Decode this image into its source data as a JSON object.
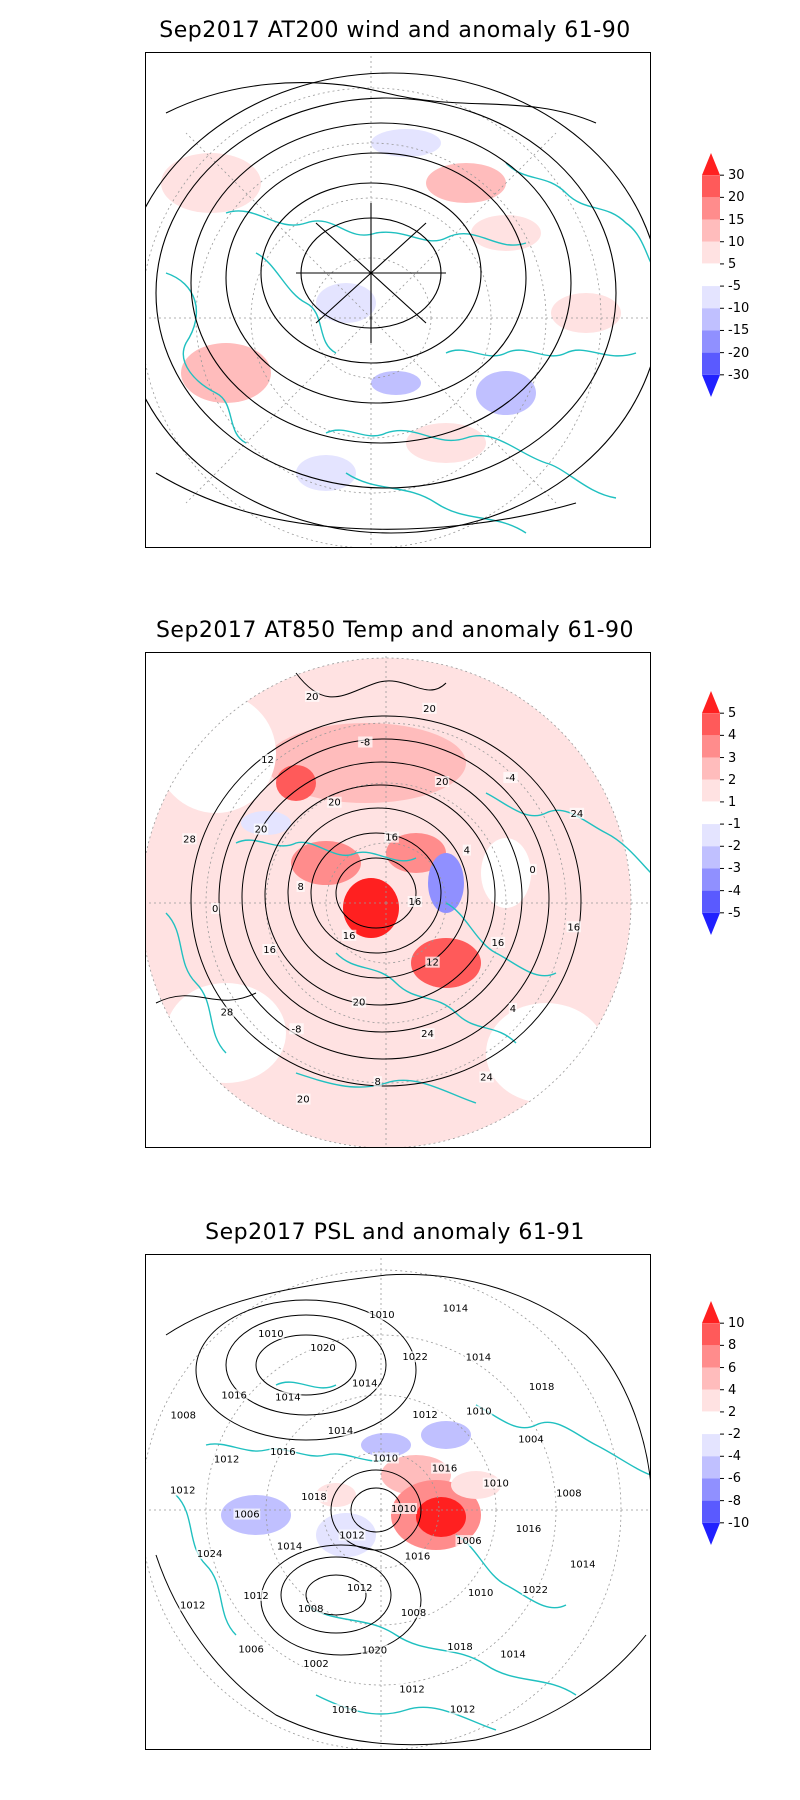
{
  "panels": [
    {
      "id": "wind200",
      "title": "Sep2017 AT200 wind and anomaly 61-90",
      "colorbar": {
        "labels": [
          "30",
          "20",
          "15",
          "10",
          "5",
          "-5",
          "-10",
          "-15",
          "-20",
          "-30"
        ],
        "colors": [
          "#ff2020",
          "#ff5a5a",
          "#ff8c8c",
          "#ffbcbc",
          "#ffe2e2",
          "#ffffff",
          "#e4e4ff",
          "#c0c0ff",
          "#9090ff",
          "#5a5aff",
          "#2020ff"
        ]
      },
      "contour_labels": []
    },
    {
      "id": "temp850",
      "title": "Sep2017 AT850 Temp and anomaly 61-90",
      "colorbar": {
        "labels": [
          "5",
          "4",
          "3",
          "2",
          "1",
          "-1",
          "-2",
          "-3",
          "-4",
          "-5"
        ],
        "colors": [
          "#ff2020",
          "#ff5a5a",
          "#ff8c8c",
          "#ffbcbc",
          "#ffe2e2",
          "#ffffff",
          "#e4e4ff",
          "#c0c0ff",
          "#9090ff",
          "#5a5aff",
          "#2020ff"
        ]
      },
      "contour_labels": [
        "16",
        "16",
        "16",
        "12",
        "8",
        "4",
        "20",
        "20",
        "16",
        "16",
        "20",
        "24",
        "20",
        "0",
        "-8",
        "-8",
        "4",
        "0",
        "-4",
        "8",
        "12",
        "16",
        "28",
        "20",
        "24",
        "28",
        "24",
        "20",
        "20"
      ]
    },
    {
      "id": "psl",
      "title": "Sep2017 PSL and anomaly 61-91",
      "colorbar": {
        "labels": [
          "10",
          "8",
          "6",
          "4",
          "2",
          "-2",
          "-4",
          "-6",
          "-8",
          "-10"
        ],
        "colors": [
          "#ff2020",
          "#ff5a5a",
          "#ff8c8c",
          "#ffbcbc",
          "#ffe2e2",
          "#ffffff",
          "#e4e4ff",
          "#c0c0ff",
          "#9090ff",
          "#5a5aff",
          "#2020ff"
        ]
      },
      "contour_labels": [
        "1010",
        "1012",
        "1010",
        "1016",
        "1018",
        "1016",
        "1012",
        "1014",
        "1006",
        "1014",
        "1012",
        "1008",
        "1016",
        "1010",
        "1008",
        "1014",
        "1010",
        "1006",
        "1010",
        "1020",
        "1014",
        "1016",
        "1012",
        "1022",
        "1018",
        "1012",
        "1004",
        "1002",
        "1020",
        "1022",
        "1024",
        "1014",
        "1012",
        "1016",
        "1008",
        "1006",
        "1010",
        "1014",
        "1012",
        "1018",
        "1016",
        "1010",
        "1014",
        "1012",
        "1014",
        "1012",
        "1008"
      ]
    }
  ]
}
